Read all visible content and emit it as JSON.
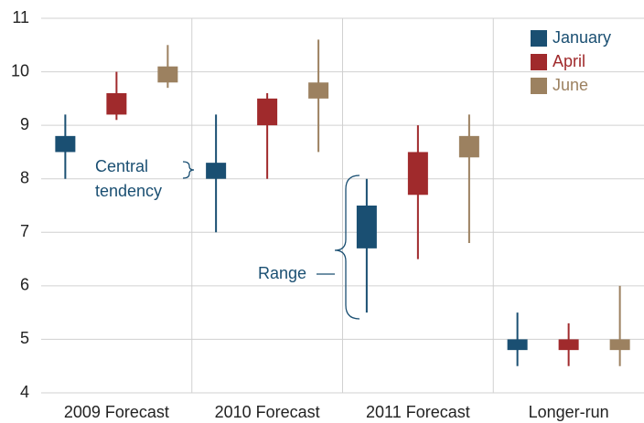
{
  "chart_data": {
    "type": "range",
    "categories": [
      "2009 Forecast",
      "2010 Forecast",
      "2011 Forecast",
      "Longer-run"
    ],
    "series": [
      {
        "name": "January",
        "color": "#1a4f72",
        "range_low": [
          8.0,
          7.0,
          5.5,
          4.5
        ],
        "range_high": [
          9.2,
          9.2,
          8.0,
          5.5
        ],
        "central_low": [
          8.5,
          8.0,
          6.7,
          4.8
        ],
        "central_high": [
          8.8,
          8.3,
          7.5,
          5.0
        ]
      },
      {
        "name": "April",
        "color": "#a02a2c",
        "range_low": [
          9.1,
          8.0,
          6.5,
          4.5
        ],
        "range_high": [
          10.0,
          9.6,
          9.0,
          5.3
        ],
        "central_low": [
          9.2,
          9.0,
          7.7,
          4.8
        ],
        "central_high": [
          9.6,
          9.5,
          8.5,
          5.0
        ]
      },
      {
        "name": "June",
        "color": "#9c8160",
        "range_low": [
          9.7,
          8.5,
          6.8,
          4.5
        ],
        "range_high": [
          10.5,
          10.6,
          9.2,
          6.0
        ],
        "central_low": [
          9.8,
          9.5,
          8.4,
          4.8
        ],
        "central_high": [
          10.1,
          9.8,
          8.8,
          5.0
        ]
      }
    ],
    "ylim": [
      4,
      11
    ],
    "yticks": [
      4,
      5,
      6,
      7,
      8,
      9,
      10,
      11
    ],
    "grid": true,
    "legend": "top-right",
    "annotations": [
      {
        "lines": [
          "Central",
          "tendency"
        ]
      },
      {
        "lines": [
          "Range"
        ]
      }
    ]
  }
}
